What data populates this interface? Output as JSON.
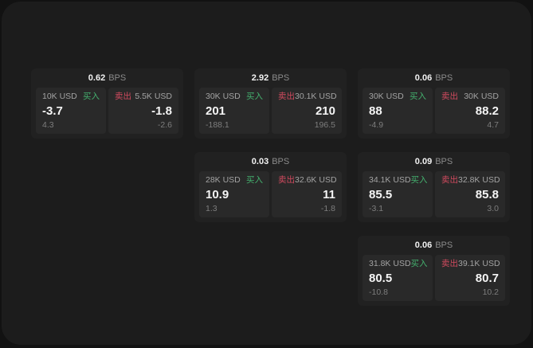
{
  "labels": {
    "bps_unit": "BPS",
    "buy": "买入",
    "sell": "卖出"
  },
  "colors": {
    "buy_green": "#44b06e",
    "sell_red": "#d04a5e",
    "outer_bg": "#121212",
    "panel_bg": "#1c1c1c",
    "card_bg": "#212121",
    "tile_bg": "#292929"
  },
  "cards": [
    {
      "bps": "0.62",
      "row": 1,
      "col": 1,
      "buy": {
        "amount": "10K USD",
        "value": "-3.7",
        "sub": "4.3"
      },
      "sell": {
        "amount": "5.5K USD",
        "value": "-1.8",
        "sub": "-2.6"
      }
    },
    {
      "bps": "2.92",
      "row": 1,
      "col": 2,
      "buy": {
        "amount": "30K USD",
        "value": "201",
        "sub": "-188.1"
      },
      "sell": {
        "amount": "30.1K USD",
        "value": "210",
        "sub": "196.5"
      }
    },
    {
      "bps": "0.06",
      "row": 1,
      "col": 3,
      "buy": {
        "amount": "30K USD",
        "value": "88",
        "sub": "-4.9"
      },
      "sell": {
        "amount": "30K USD",
        "value": "88.2",
        "sub": "4.7"
      }
    },
    {
      "bps": "0.03",
      "row": 2,
      "col": 2,
      "buy": {
        "amount": "28K USD",
        "value": "10.9",
        "sub": "1.3"
      },
      "sell": {
        "amount": "32.6K USD",
        "value": "11",
        "sub": "-1.8"
      }
    },
    {
      "bps": "0.09",
      "row": 2,
      "col": 3,
      "buy": {
        "amount": "34.1K USD",
        "value": "85.5",
        "sub": "-3.1"
      },
      "sell": {
        "amount": "32.8K USD",
        "value": "85.8",
        "sub": "3.0"
      }
    },
    {
      "bps": "0.06",
      "row": 3,
      "col": 3,
      "buy": {
        "amount": "31.8K USD",
        "value": "80.5",
        "sub": "-10.8"
      },
      "sell": {
        "amount": "39.1K USD",
        "value": "80.7",
        "sub": "10.2"
      }
    }
  ]
}
